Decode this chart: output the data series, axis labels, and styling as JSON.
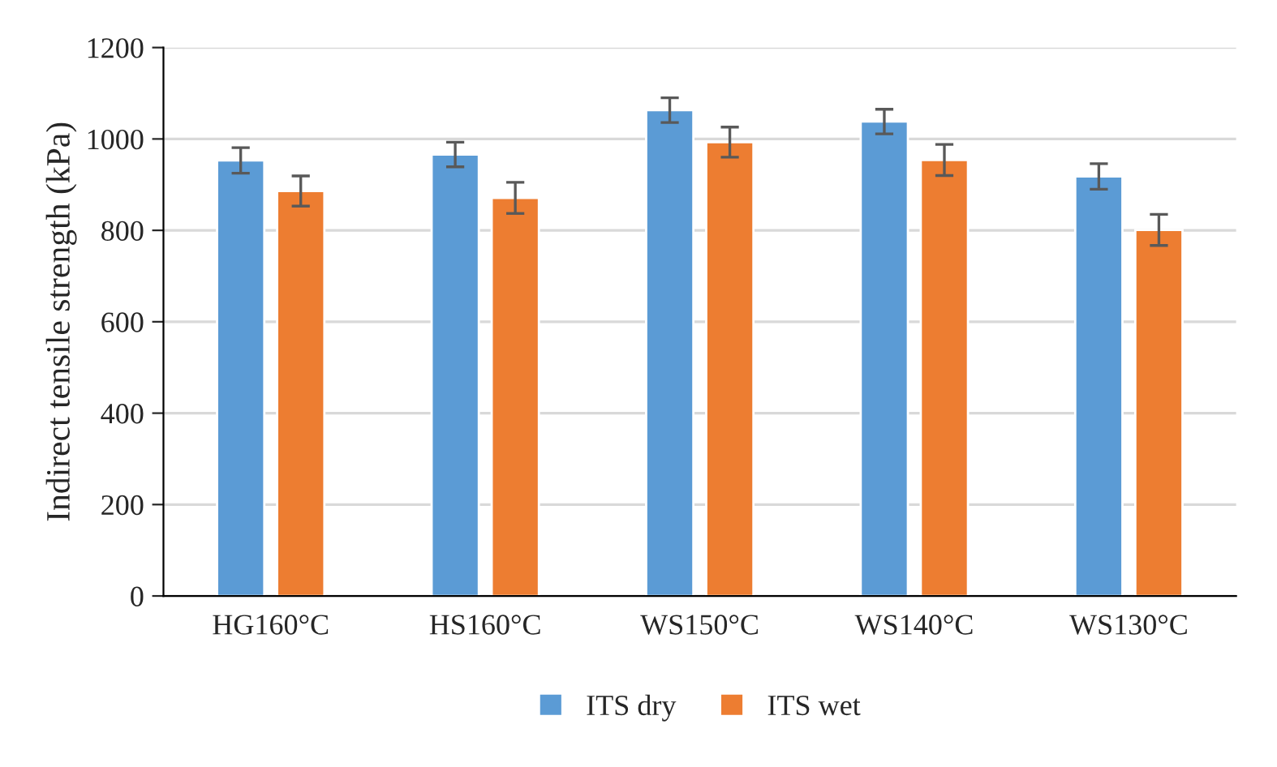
{
  "chart_data": {
    "type": "bar",
    "ylabel": "Indirect tensile strength (kPa)",
    "categories": [
      "HG160°C",
      "HS160°C",
      "WS150°C",
      "WS140°C",
      "WS130°C"
    ],
    "series": [
      {
        "name": "ITS dry",
        "color": "#5b9bd5",
        "values": [
          953,
          966,
          1063,
          1038,
          918
        ],
        "errors": [
          28,
          27,
          27,
          27,
          28
        ]
      },
      {
        "name": "ITS wet",
        "color": "#ed7d31",
        "values": [
          886,
          871,
          993,
          954,
          801
        ],
        "errors": [
          33,
          34,
          33,
          34,
          34
        ]
      }
    ],
    "ylim": [
      0,
      1200
    ],
    "yticks": [
      0,
      200,
      400,
      600,
      800,
      1000,
      1200
    ],
    "grid": "y",
    "legend": "bottom"
  }
}
